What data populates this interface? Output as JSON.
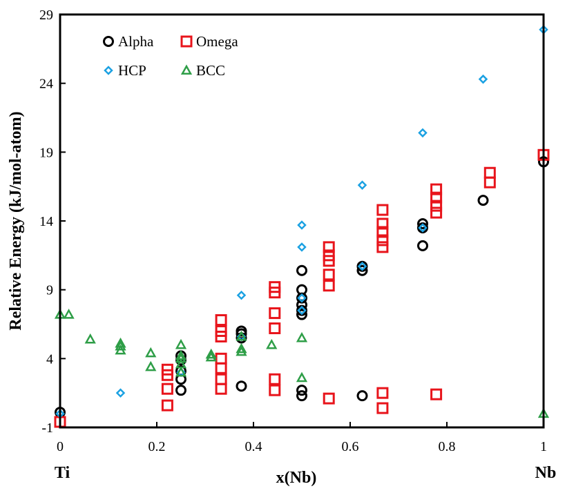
{
  "chart_data": {
    "type": "scatter",
    "title": "",
    "xlabel": "x(Nb)",
    "ylabel": "Relative Energy (kJ/mol-atom)",
    "xlim": [
      0,
      1
    ],
    "ylim": [
      -1,
      29
    ],
    "x_ticks": [
      "0",
      "0.2",
      "0.4",
      "0.6",
      "0.8",
      "1"
    ],
    "y_ticks": [
      "-1",
      "4",
      "9",
      "14",
      "19",
      "24",
      "29"
    ],
    "end_labels": {
      "left": "Ti",
      "right": "Nb"
    },
    "grid": false,
    "legend_position": "top-left",
    "series": [
      {
        "name": "Alpha",
        "marker": "circle",
        "color": "#000000",
        "points": [
          [
            0,
            0.1
          ],
          [
            0.25,
            1.7
          ],
          [
            0.25,
            2.5
          ],
          [
            0.25,
            3.1
          ],
          [
            0.25,
            3.9
          ],
          [
            0.25,
            4.2
          ],
          [
            0.375,
            2.0
          ],
          [
            0.375,
            5.5
          ],
          [
            0.375,
            5.8
          ],
          [
            0.375,
            6.0
          ],
          [
            0.5,
            1.3
          ],
          [
            0.5,
            1.7
          ],
          [
            0.5,
            7.2
          ],
          [
            0.5,
            7.5
          ],
          [
            0.5,
            7.9
          ],
          [
            0.5,
            8.4
          ],
          [
            0.5,
            9.0
          ],
          [
            0.5,
            10.4
          ],
          [
            0.625,
            1.3
          ],
          [
            0.625,
            10.4
          ],
          [
            0.625,
            10.7
          ],
          [
            0.75,
            12.2
          ],
          [
            0.75,
            13.5
          ],
          [
            0.75,
            13.8
          ],
          [
            0.875,
            15.5
          ],
          [
            1,
            18.3
          ]
        ]
      },
      {
        "name": "Omega",
        "marker": "square",
        "color": "#e8141b",
        "points": [
          [
            0,
            -0.6
          ],
          [
            0.222,
            0.6
          ],
          [
            0.222,
            1.8
          ],
          [
            0.222,
            2.8
          ],
          [
            0.222,
            3.2
          ],
          [
            0.333,
            1.8
          ],
          [
            0.333,
            2.5
          ],
          [
            0.333,
            3.3
          ],
          [
            0.333,
            4.0
          ],
          [
            0.333,
            5.6
          ],
          [
            0.333,
            6.0
          ],
          [
            0.333,
            6.8
          ],
          [
            0.444,
            1.7
          ],
          [
            0.444,
            2.5
          ],
          [
            0.444,
            6.2
          ],
          [
            0.444,
            7.3
          ],
          [
            0.444,
            8.8
          ],
          [
            0.444,
            9.2
          ],
          [
            0.556,
            1.1
          ],
          [
            0.556,
            9.3
          ],
          [
            0.556,
            10.1
          ],
          [
            0.556,
            11.1
          ],
          [
            0.556,
            11.5
          ],
          [
            0.556,
            12.1
          ],
          [
            0.667,
            0.4
          ],
          [
            0.667,
            1.5
          ],
          [
            0.667,
            12.1
          ],
          [
            0.667,
            12.6
          ],
          [
            0.667,
            13.2
          ],
          [
            0.667,
            13.8
          ],
          [
            0.667,
            14.8
          ],
          [
            0.778,
            1.4
          ],
          [
            0.778,
            14.6
          ],
          [
            0.778,
            15.1
          ],
          [
            0.778,
            15.7
          ],
          [
            0.778,
            16.3
          ],
          [
            0.889,
            16.8
          ],
          [
            0.889,
            17.5
          ],
          [
            1,
            18.8
          ]
        ]
      },
      {
        "name": "HCP",
        "marker": "diamond",
        "color": "#1ba1e2",
        "points": [
          [
            0,
            0.0
          ],
          [
            0.125,
            1.5
          ],
          [
            0.25,
            3.0
          ],
          [
            0.375,
            5.6
          ],
          [
            0.375,
            8.6
          ],
          [
            0.5,
            7.5
          ],
          [
            0.5,
            8.4
          ],
          [
            0.5,
            12.1
          ],
          [
            0.5,
            13.7
          ],
          [
            0.625,
            10.7
          ],
          [
            0.625,
            16.6
          ],
          [
            0.75,
            13.5
          ],
          [
            0.75,
            20.4
          ],
          [
            0.875,
            24.3
          ],
          [
            1,
            27.9
          ]
        ]
      },
      {
        "name": "BCC",
        "marker": "triangle",
        "color": "#2e9e47",
        "points": [
          [
            0,
            7.2
          ],
          [
            0.018,
            7.2
          ],
          [
            0.0625,
            5.4
          ],
          [
            0.125,
            4.6
          ],
          [
            0.125,
            4.9
          ],
          [
            0.125,
            5.1
          ],
          [
            0.1875,
            3.4
          ],
          [
            0.1875,
            4.4
          ],
          [
            0.25,
            3.0
          ],
          [
            0.25,
            3.6
          ],
          [
            0.25,
            4.0
          ],
          [
            0.25,
            4.2
          ],
          [
            0.25,
            5.0
          ],
          [
            0.3125,
            4.1
          ],
          [
            0.3125,
            4.3
          ],
          [
            0.375,
            4.5
          ],
          [
            0.375,
            4.7
          ],
          [
            0.375,
            5.6
          ],
          [
            0.4375,
            5.0
          ],
          [
            0.5,
            2.6
          ],
          [
            0.5,
            5.5
          ],
          [
            1,
            0.0
          ]
        ]
      }
    ]
  }
}
